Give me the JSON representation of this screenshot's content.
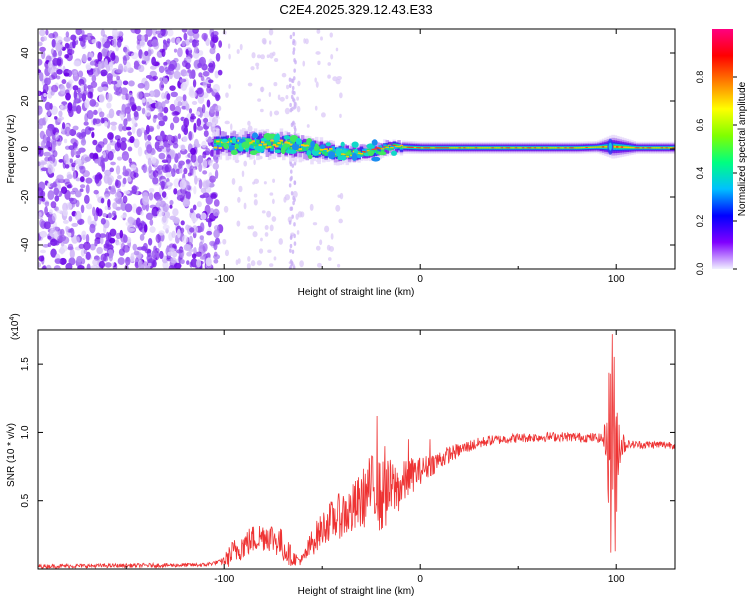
{
  "figure_title": "C2E4.2025.329.12.43.E33",
  "chart_data": [
    {
      "type": "heatmap",
      "xlabel": "Height of straight line (km)",
      "ylabel": "Frequency (Hz)",
      "xlim": [
        -195,
        130
      ],
      "ylim": [
        -50,
        50
      ],
      "xticks": [
        -100,
        0,
        100
      ],
      "xtick_labels": [
        "-100",
        "0",
        "100"
      ],
      "yticks": [
        -40,
        -20,
        0,
        20,
        40
      ],
      "ytick_labels": [
        "-40",
        "-20",
        "0",
        "20",
        "40"
      ],
      "colorbar": {
        "label": "Normalized spectral amplitude",
        "range": [
          0,
          1
        ],
        "ticks": [
          0.0,
          0.2,
          0.4,
          0.6,
          0.8
        ],
        "tick_labels": [
          "0.0",
          "0.2",
          "0.4",
          "0.6",
          "0.8"
        ],
        "colors": [
          "#f0f0ff",
          "#8000ff",
          "#0000ff",
          "#00c0ff",
          "#00ff80",
          "#80ff00",
          "#ffff00",
          "#ff8000",
          "#ff0000",
          "#ff0080"
        ]
      },
      "features": {
        "noise_region_x": [
          -195,
          -102
        ],
        "band_center_hz": [
          [
            -105,
            2
          ],
          [
            -90,
            2
          ],
          [
            -70,
            2
          ],
          [
            -50,
            -1
          ],
          [
            -35,
            -2
          ],
          [
            -25,
            -1
          ],
          [
            -15,
            1
          ],
          [
            0,
            0.5
          ],
          [
            40,
            0.5
          ],
          [
            80,
            0.5
          ],
          [
            97,
            1
          ],
          [
            110,
            0.5
          ],
          [
            130,
            0.5
          ]
        ],
        "band_halfwidth_hz": [
          [
            -105,
            5
          ],
          [
            -80,
            5
          ],
          [
            -60,
            5
          ],
          [
            -40,
            4
          ],
          [
            -20,
            3
          ],
          [
            0,
            2.5
          ],
          [
            90,
            2.5
          ],
          [
            98,
            5
          ],
          [
            110,
            2.5
          ],
          [
            130,
            2.5
          ]
        ]
      }
    },
    {
      "type": "line",
      "xlabel": "Height of straight line (km)",
      "ylabel": "SNR (10 * v/v)",
      "scale_label_base": "(x10",
      "scale_label_exp": "4",
      "scale_label_end": ")",
      "xlim": [
        -195,
        130
      ],
      "ylim": [
        0,
        1.75
      ],
      "xticks": [
        -100,
        0,
        100
      ],
      "xtick_labels": [
        "-100",
        "0",
        "100"
      ],
      "yticks": [
        0.5,
        1.0,
        1.5
      ],
      "ytick_labels": [
        "0.5",
        "1.0",
        "1.5"
      ],
      "series": [
        {
          "name": "SNR",
          "color": "#ee3333",
          "envelope": [
            [
              -195,
              0.02
            ],
            [
              -110,
              0.03
            ],
            [
              -100,
              0.06
            ],
            [
              -92,
              0.16
            ],
            [
              -85,
              0.22
            ],
            [
              -78,
              0.25
            ],
            [
              -72,
              0.2
            ],
            [
              -65,
              0.08
            ],
            [
              -60,
              0.06
            ],
            [
              -55,
              0.2
            ],
            [
              -48,
              0.33
            ],
            [
              -40,
              0.4
            ],
            [
              -35,
              0.42
            ],
            [
              -30,
              0.5
            ],
            [
              -25,
              0.6
            ],
            [
              -20,
              0.52
            ],
            [
              -15,
              0.58
            ],
            [
              -10,
              0.6
            ],
            [
              -5,
              0.68
            ],
            [
              0,
              0.72
            ],
            [
              5,
              0.76
            ],
            [
              15,
              0.84
            ],
            [
              25,
              0.9
            ],
            [
              35,
              0.94
            ],
            [
              50,
              0.96
            ],
            [
              70,
              0.97
            ],
            [
              90,
              0.96
            ],
            [
              95,
              0.95
            ],
            [
              100,
              0.92
            ],
            [
              110,
              0.91
            ],
            [
              130,
              0.91
            ]
          ],
          "noise_amplitude": [
            [
              -195,
              0.015
            ],
            [
              -102,
              0.015
            ],
            [
              -96,
              0.1
            ],
            [
              -70,
              0.12
            ],
            [
              -62,
              0.03
            ],
            [
              -56,
              0.1
            ],
            [
              -30,
              0.22
            ],
            [
              -20,
              0.28
            ],
            [
              -10,
              0.18
            ],
            [
              0,
              0.1
            ],
            [
              20,
              0.05
            ],
            [
              40,
              0.035
            ],
            [
              92,
              0.035
            ],
            [
              95,
              0.15
            ],
            [
              97,
              0.8
            ],
            [
              99,
              0.8
            ],
            [
              102,
              0.15
            ],
            [
              106,
              0.03
            ],
            [
              130,
              0.03
            ]
          ],
          "spikes": [
            [
              -22,
              1.12
            ],
            [
              -18,
              0.9
            ],
            [
              -6,
              0.95
            ],
            [
              5,
              0.95
            ],
            [
              98,
              1.72
            ],
            [
              97.2,
              0.12
            ],
            [
              99.5,
              0.13
            ]
          ]
        }
      ]
    }
  ]
}
